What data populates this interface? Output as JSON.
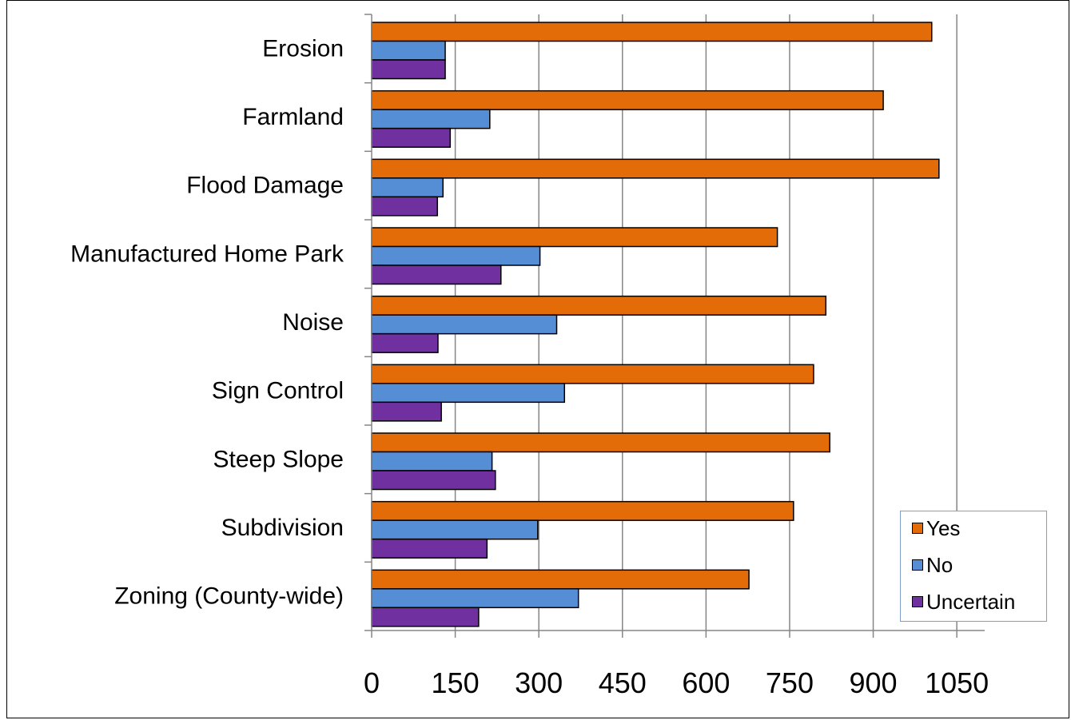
{
  "chart_data": {
    "type": "bar",
    "orientation": "horizontal",
    "title": "",
    "xlabel": "",
    "ylabel": "",
    "categories": [
      "Erosion",
      "Farmland",
      "Flood Damage",
      "Manufactured Home Park",
      "Noise",
      "Sign Control",
      "Steep Slope",
      "Subdivision",
      "Zoning (County-wide)"
    ],
    "series": [
      {
        "name": "Yes",
        "color": "#e36c09",
        "values": [
          1005,
          918,
          1018,
          728,
          815,
          793,
          822,
          757,
          677
        ]
      },
      {
        "name": "No",
        "color": "#558ed5",
        "values": [
          132,
          212,
          128,
          302,
          332,
          346,
          216,
          298,
          371
        ]
      },
      {
        "name": "Uncertain",
        "color": "#7030a0",
        "values": [
          132,
          141,
          118,
          232,
          119,
          125,
          222,
          207,
          192
        ]
      }
    ],
    "xlim": [
      0,
      1100
    ],
    "xticks": [
      "0",
      "150",
      "300",
      "450",
      "600",
      "750",
      "900",
      "1050"
    ],
    "xtick_values": [
      0,
      150,
      300,
      450,
      600,
      750,
      900,
      1050
    ],
    "grid": "vertical",
    "legend_position": "bottom-right"
  }
}
